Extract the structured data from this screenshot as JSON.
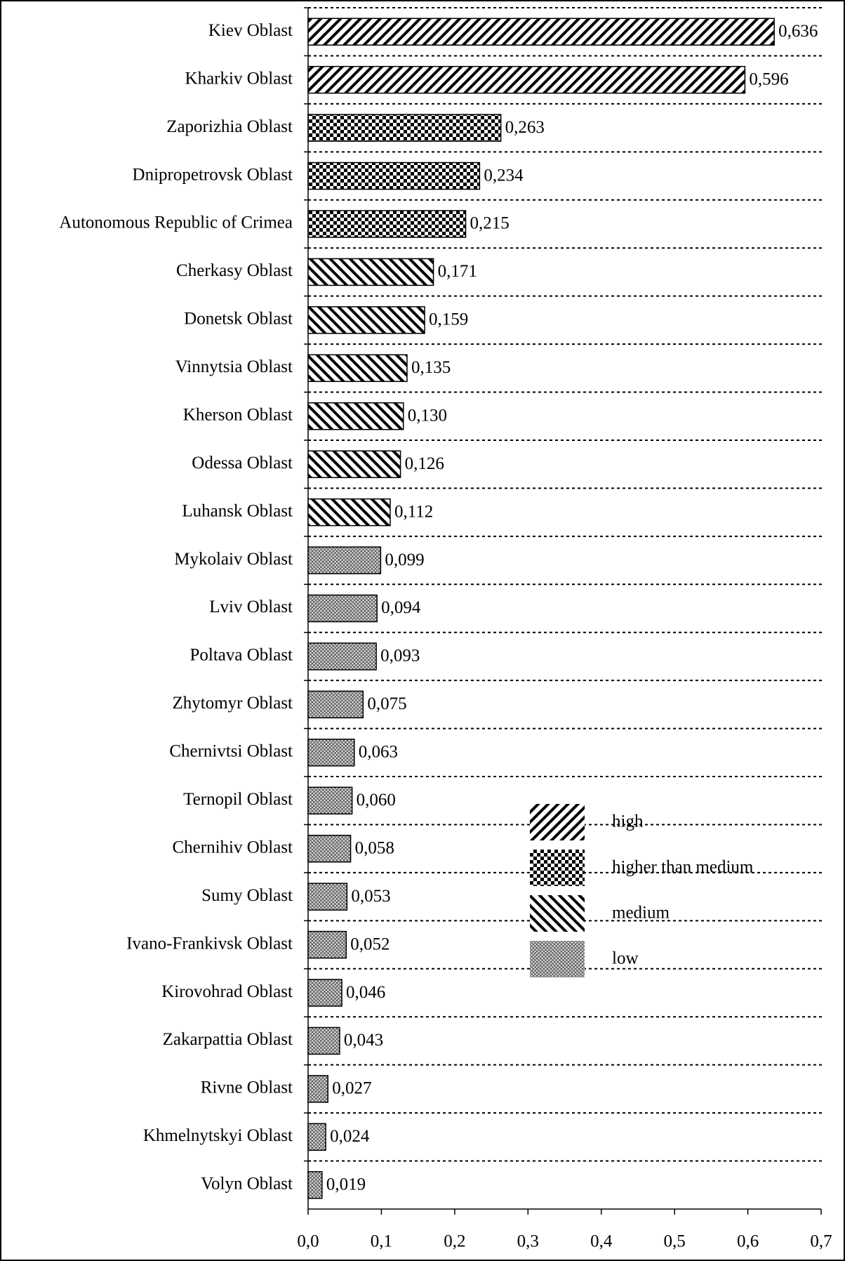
{
  "chart_data": {
    "type": "bar",
    "orientation": "horizontal",
    "categories": [
      "Kiev Oblast",
      "Kharkiv Oblast",
      "Zaporizhia Oblast",
      "Dnipropetrovsk Oblast",
      "Autonomous Republic of Crimea",
      "Cherkasy Oblast",
      "Donetsk Oblast",
      "Vinnytsia Oblast",
      "Kherson Oblast",
      "Odessa Oblast",
      "Luhansk Oblast",
      "Mykolaiv Oblast",
      "Lviv Oblast",
      "Poltava Oblast",
      "Zhytomyr Oblast",
      "Chernivtsi Oblast",
      "Ternopil Oblast",
      "Chernihiv Oblast",
      "Sumy Oblast",
      "Ivano-Frankivsk Oblast",
      "Kirovohrad Oblast",
      "Zakarpattia Oblast",
      "Rivne Oblast",
      "Khmelnytskyi Oblast",
      "Volyn Oblast"
    ],
    "series": [
      {
        "name": "high",
        "pattern": "diagonal-back",
        "color": "#000000",
        "values": [
          0.636,
          0.596,
          null,
          null,
          null,
          null,
          null,
          null,
          null,
          null,
          null,
          null,
          null,
          null,
          null,
          null,
          null,
          null,
          null,
          null,
          null,
          null,
          null,
          null,
          null
        ],
        "value_labels": [
          "0,636",
          "0,596",
          null,
          null,
          null,
          null,
          null,
          null,
          null,
          null,
          null,
          null,
          null,
          null,
          null,
          null,
          null,
          null,
          null,
          null,
          null,
          null,
          null,
          null,
          null
        ]
      },
      {
        "name": "higher than medium",
        "pattern": "checker",
        "color": "#000000",
        "values": [
          null,
          null,
          0.263,
          0.234,
          0.215,
          null,
          null,
          null,
          null,
          null,
          null,
          null,
          null,
          null,
          null,
          null,
          null,
          null,
          null,
          null,
          null,
          null,
          null,
          null,
          null
        ],
        "value_labels": [
          null,
          null,
          "0,263",
          "0,234",
          "0,215",
          null,
          null,
          null,
          null,
          null,
          null,
          null,
          null,
          null,
          null,
          null,
          null,
          null,
          null,
          null,
          null,
          null,
          null,
          null,
          null
        ]
      },
      {
        "name": "medium",
        "pattern": "diagonal-forward",
        "color": "#000000",
        "values": [
          null,
          null,
          null,
          null,
          null,
          0.171,
          0.159,
          0.135,
          0.13,
          0.126,
          0.112,
          null,
          null,
          null,
          null,
          null,
          null,
          null,
          null,
          null,
          null,
          null,
          null,
          null,
          null
        ],
        "value_labels": [
          null,
          null,
          null,
          null,
          null,
          "0,171",
          "0,159",
          "0,135",
          "0,130",
          "0,126",
          "0,112",
          null,
          null,
          null,
          null,
          null,
          null,
          null,
          null,
          null,
          null,
          null,
          null,
          null,
          null
        ]
      },
      {
        "name": "low",
        "pattern": "crosshatch",
        "color": "#555555",
        "values": [
          null,
          null,
          null,
          null,
          null,
          null,
          null,
          null,
          null,
          null,
          null,
          0.099,
          0.094,
          0.093,
          0.075,
          0.063,
          0.06,
          0.058,
          0.053,
          0.052,
          0.046,
          0.043,
          0.027,
          0.024,
          0.019
        ],
        "value_labels": [
          null,
          null,
          null,
          null,
          null,
          null,
          null,
          null,
          null,
          null,
          null,
          "0,099",
          "0,094",
          "0,093",
          "0,075",
          "0,063",
          "0,060",
          "0,058",
          "0,053",
          "0,052",
          "0,046",
          "0,043",
          "0,027",
          "0,024",
          "0,019"
        ]
      }
    ],
    "xlim": [
      0,
      0.7
    ],
    "xticks": [
      {
        "value": 0,
        "label": "0,0"
      },
      {
        "value": 0.1,
        "label": "0,1"
      },
      {
        "value": 0.2,
        "label": "0,2"
      },
      {
        "value": 0.3,
        "label": "0,3"
      },
      {
        "value": 0.4,
        "label": "0,4"
      },
      {
        "value": 0.5,
        "label": "0,5"
      },
      {
        "value": 0.6,
        "label": "0,6"
      },
      {
        "value": 0.7,
        "label": "0,7"
      }
    ],
    "legend": "right"
  }
}
